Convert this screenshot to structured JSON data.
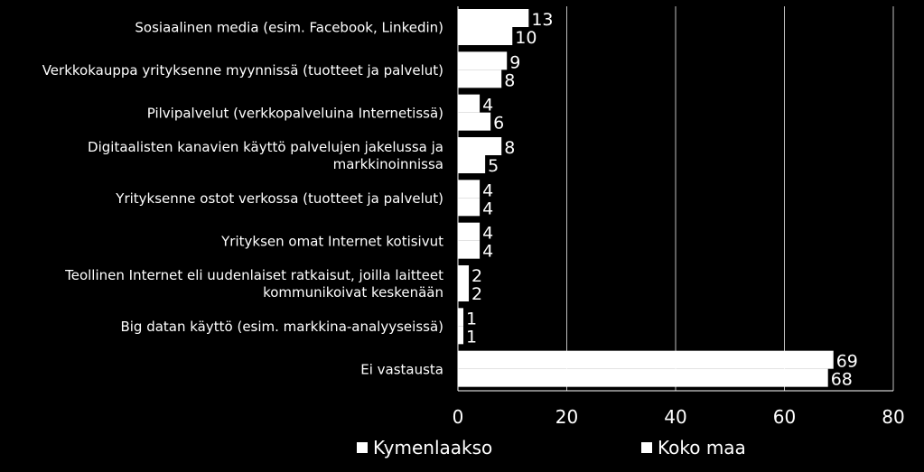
{
  "chart_data": {
    "type": "bar",
    "orientation": "horizontal",
    "categories": [
      [
        "Sosiaalinen media (esim. Facebook, Linkedin)"
      ],
      [
        "Verkkokauppa yrityksenne myynnissä (tuotteet ja palvelut)"
      ],
      [
        "Pilvipalvelut  (verkkopalveluina Internetissä)"
      ],
      [
        "Digitaalisten kanavien käyttö palvelujen jakelussa ja",
        "markkinoinnissa"
      ],
      [
        "Yrityksenne ostot verkossa (tuotteet ja palvelut)"
      ],
      [
        "Yrityksen omat Internet kotisivut"
      ],
      [
        "Teollinen Internet eli uudenlaiset ratkaisut, joilla laitteet",
        "kommunikoivat keskenään"
      ],
      [
        "Big datan käyttö (esim. markkina-analyyseissä)"
      ],
      [
        "Ei vastausta"
      ]
    ],
    "series": [
      {
        "name": "Kymenlaakso",
        "values": [
          13,
          9,
          4,
          8,
          4,
          4,
          2,
          1,
          69
        ],
        "color": "#ffffff"
      },
      {
        "name": "Koko maa",
        "values": [
          10,
          8,
          6,
          5,
          4,
          4,
          2,
          1,
          68
        ],
        "color": "#ffffff"
      }
    ],
    "xlim": [
      0,
      80
    ],
    "xticks": [
      0,
      20,
      40,
      60,
      80
    ],
    "grid": true,
    "legend_position": "bottom"
  },
  "colors": {
    "background": "#000000",
    "bars": "#ffffff",
    "grid": "#ffffff"
  }
}
